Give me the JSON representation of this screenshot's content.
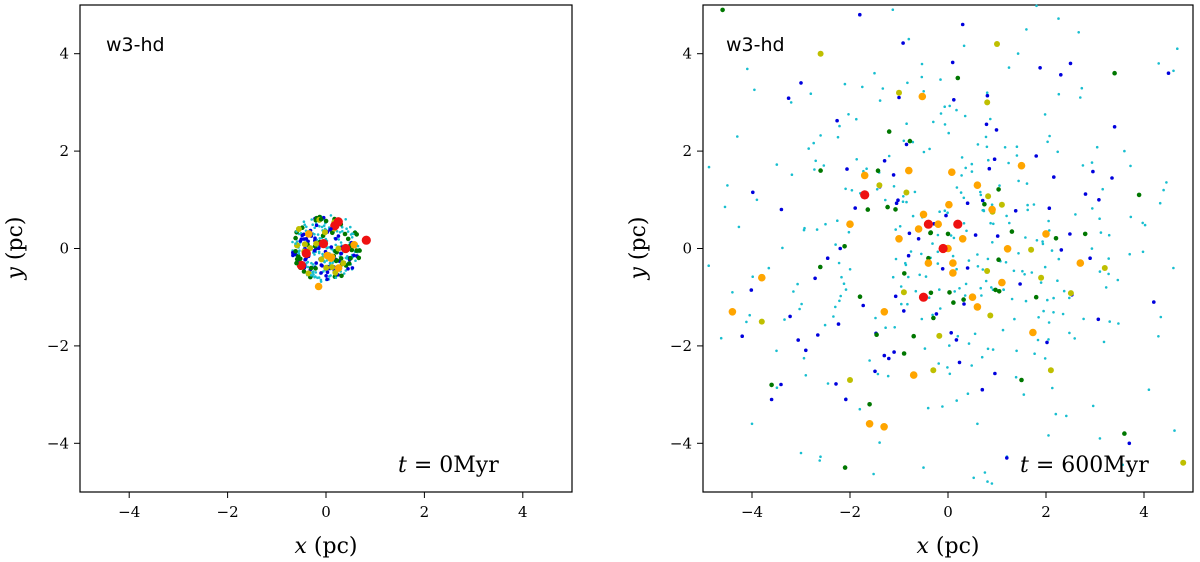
{
  "chart_data": [
    {
      "type": "scatter",
      "panel_tag": "w3-hd",
      "time_var": "t",
      "time_text": " = 0Myr",
      "xlabel_var": "x",
      "xlabel_unit": " (pc)",
      "ylabel_var": "y",
      "ylabel_unit": " (pc)",
      "xlim": [
        -5,
        5
      ],
      "ylim": [
        -5,
        5
      ],
      "xticks": [
        "−4",
        "−2",
        "0",
        "2",
        "4"
      ],
      "yticks": [
        "−4",
        "−2",
        "0",
        "2",
        "4"
      ],
      "xtick_values": [
        -4,
        -2,
        0,
        2,
        4
      ],
      "ytick_values": [
        -4,
        -2,
        0,
        2,
        4
      ],
      "grid": false,
      "distribution": "compact-cluster",
      "cluster_center": [
        0,
        0
      ],
      "cluster_radius": 0.7,
      "series": [
        {
          "color": "#17becf",
          "values": [
            [
              -0.55,
              -0.1
            ],
            [
              -0.6,
              0.35
            ],
            [
              0.55,
              0.3
            ],
            [
              0.6,
              -0.25
            ],
            [
              -0.3,
              -0.55
            ],
            [
              0.2,
              -0.6
            ],
            [
              -0.45,
              0.55
            ],
            [
              0.4,
              0.6
            ],
            [
              -0.62,
              0.1
            ],
            [
              0.65,
              0.05
            ],
            [
              0.1,
              0.68
            ],
            [
              -0.1,
              -0.68
            ]
          ]
        },
        {
          "color": "#0000dd",
          "values": [
            [
              -0.2,
              -0.3
            ],
            [
              0.1,
              0.4
            ],
            [
              0.3,
              -0.1
            ],
            [
              -0.4,
              0.2
            ],
            [
              0.2,
              0.2
            ],
            [
              -0.1,
              -0.5
            ]
          ]
        },
        {
          "color": "#007700",
          "values": [
            [
              -0.1,
              0.6
            ],
            [
              -0.6,
              -0.3
            ],
            [
              0.5,
              -0.2
            ],
            [
              0.3,
              0.5
            ],
            [
              -0.3,
              -0.4
            ]
          ]
        },
        {
          "color": "#bfbf00",
          "values": [
            [
              -0.55,
              0.4
            ],
            [
              0.35,
              -0.3
            ],
            [
              -0.2,
              0.1
            ]
          ]
        },
        {
          "color": "#ffa500",
          "values": [
            [
              -0.15,
              -0.78
            ],
            [
              0.1,
              -0.2
            ],
            [
              -0.35,
              0.3
            ]
          ]
        },
        {
          "color": "#ee1111",
          "values": [
            [
              0.82,
              0.17
            ],
            [
              0.25,
              0.55
            ],
            [
              -0.05,
              0.1
            ],
            [
              0.4,
              0.0
            ],
            [
              -0.4,
              -0.1
            ]
          ]
        }
      ]
    },
    {
      "type": "scatter",
      "panel_tag": "w3-hd",
      "time_var": "t",
      "time_text": " = 600Myr",
      "xlabel_var": "x",
      "xlabel_unit": " (pc)",
      "ylabel_var": "y",
      "ylabel_unit": " (pc)",
      "xlim": [
        -5,
        5
      ],
      "ylim": [
        -5,
        5
      ],
      "xticks": [
        "−4",
        "−2",
        "0",
        "2",
        "4"
      ],
      "yticks": [
        "−4",
        "−2",
        "0",
        "2",
        "4"
      ],
      "xtick_values": [
        -4,
        -2,
        0,
        2,
        4
      ],
      "ytick_values": [
        -4,
        -2,
        0,
        2,
        4
      ],
      "grid": false,
      "distribution": "dispersed",
      "cluster_center": [
        0,
        0
      ],
      "series": [
        {
          "color": "#17becf",
          "values": [
            [
              -4.3,
              2.3
            ],
            [
              -3.9,
              1.0
            ],
            [
              -3.2,
              3.0
            ],
            [
              -2.5,
              0.5
            ],
            [
              -1.5,
              3.6
            ],
            [
              -0.8,
              4.3
            ],
            [
              0.8,
              3.2
            ],
            [
              1.6,
              4.5
            ],
            [
              2.7,
              3.1
            ],
            [
              3.6,
              2.0
            ],
            [
              4.4,
              1.2
            ],
            [
              -4.4,
              -0.9
            ],
            [
              -3.5,
              -2.1
            ],
            [
              -2.3,
              -1.2
            ],
            [
              -1.8,
              -3.3
            ],
            [
              -0.5,
              -4.5
            ],
            [
              0.6,
              -3.6
            ],
            [
              1.4,
              -2.1
            ],
            [
              2.2,
              -3.4
            ],
            [
              3.3,
              -1.5
            ],
            [
              4.1,
              -2.9
            ],
            [
              4.6,
              -0.4
            ],
            [
              -3.0,
              -4.2
            ],
            [
              -1.2,
              1.9
            ],
            [
              0.9,
              0.9
            ],
            [
              2.6,
              0.7
            ],
            [
              -2.7,
              1.8
            ],
            [
              3.1,
              -3.9
            ],
            [
              -0.3,
              2.6
            ],
            [
              1.9,
              -0.7
            ],
            [
              -1.6,
              -2.3
            ],
            [
              0.2,
              -1.8
            ],
            [
              -4.0,
              -3.6
            ],
            [
              4.3,
              3.8
            ]
          ]
        },
        {
          "color": "#0000dd",
          "values": [
            [
              -3.0,
              3.4
            ],
            [
              -1.8,
              4.8
            ],
            [
              0.3,
              4.6
            ],
            [
              2.5,
              3.8
            ],
            [
              4.5,
              3.6
            ],
            [
              -4.2,
              -1.8
            ],
            [
              -3.6,
              -3.1
            ],
            [
              -1.3,
              -2.2
            ],
            [
              0.7,
              -2.9
            ],
            [
              1.8,
              1.9
            ],
            [
              3.4,
              2.5
            ],
            [
              4.2,
              -1.1
            ],
            [
              -2.2,
              0.0
            ],
            [
              -0.6,
              0.2
            ],
            [
              0.4,
              -0.4
            ],
            [
              2.9,
              -0.2
            ],
            [
              -1.0,
              3.1
            ],
            [
              1.2,
              -4.3
            ],
            [
              3.7,
              -4.0
            ],
            [
              -3.4,
              0.8
            ]
          ]
        },
        {
          "color": "#007700",
          "values": [
            [
              -2.6,
              1.6
            ],
            [
              -1.2,
              2.4
            ],
            [
              0.2,
              3.5
            ],
            [
              3.4,
              3.6
            ],
            [
              3.9,
              1.1
            ],
            [
              -1.6,
              -3.2
            ],
            [
              -0.7,
              -1.8
            ],
            [
              1.5,
              -2.7
            ],
            [
              2.8,
              0.3
            ],
            [
              -3.6,
              -2.8
            ],
            [
              0.0,
              0.3
            ],
            [
              -0.4,
              -0.2
            ],
            [
              1.8,
              -1.0
            ],
            [
              -2.1,
              -4.5
            ],
            [
              3.6,
              -3.8
            ],
            [
              -4.6,
              4.9
            ]
          ]
        },
        {
          "color": "#bfbf00",
          "values": [
            [
              -2.6,
              4.0
            ],
            [
              -1.0,
              3.2
            ],
            [
              0.8,
              3.0
            ],
            [
              1.0,
              4.2
            ],
            [
              -3.8,
              -1.5
            ],
            [
              -2.0,
              -2.7
            ],
            [
              -0.3,
              -2.5
            ],
            [
              2.1,
              -2.5
            ],
            [
              3.2,
              -0.4
            ],
            [
              4.8,
              -4.4
            ],
            [
              -1.4,
              1.3
            ],
            [
              1.1,
              0.9
            ],
            [
              -0.9,
              -0.9
            ],
            [
              1.9,
              -0.6
            ]
          ]
        },
        {
          "color": "#ffa500",
          "values": [
            [
              -4.4,
              -1.3
            ],
            [
              -3.8,
              -0.6
            ],
            [
              -2.0,
              0.5
            ],
            [
              -1.7,
              1.5
            ],
            [
              -1.6,
              -3.6
            ],
            [
              -1.3,
              -1.3
            ],
            [
              -0.8,
              1.6
            ],
            [
              -0.6,
              0.4
            ],
            [
              -0.7,
              -2.6
            ],
            [
              -0.4,
              -0.3
            ],
            [
              0.1,
              -0.5
            ],
            [
              0.5,
              -1.0
            ],
            [
              0.6,
              -1.2
            ],
            [
              0.3,
              0.2
            ],
            [
              0.9,
              0.8
            ],
            [
              1.1,
              -0.7
            ],
            [
              1.5,
              1.7
            ],
            [
              2.0,
              0.3
            ],
            [
              2.7,
              -0.3
            ],
            [
              0.6,
              1.3
            ],
            [
              -0.2,
              0.5
            ],
            [
              0.0,
              0.0
            ],
            [
              0.1,
              -0.3
            ],
            [
              -0.5,
              0.7
            ],
            [
              -1.0,
              0.2
            ]
          ]
        },
        {
          "color": "#ee1111",
          "values": [
            [
              -1.7,
              1.1
            ],
            [
              -0.4,
              0.5
            ],
            [
              0.2,
              0.5
            ],
            [
              -0.1,
              0.0
            ],
            [
              -0.5,
              -1.0
            ]
          ]
        }
      ]
    }
  ]
}
